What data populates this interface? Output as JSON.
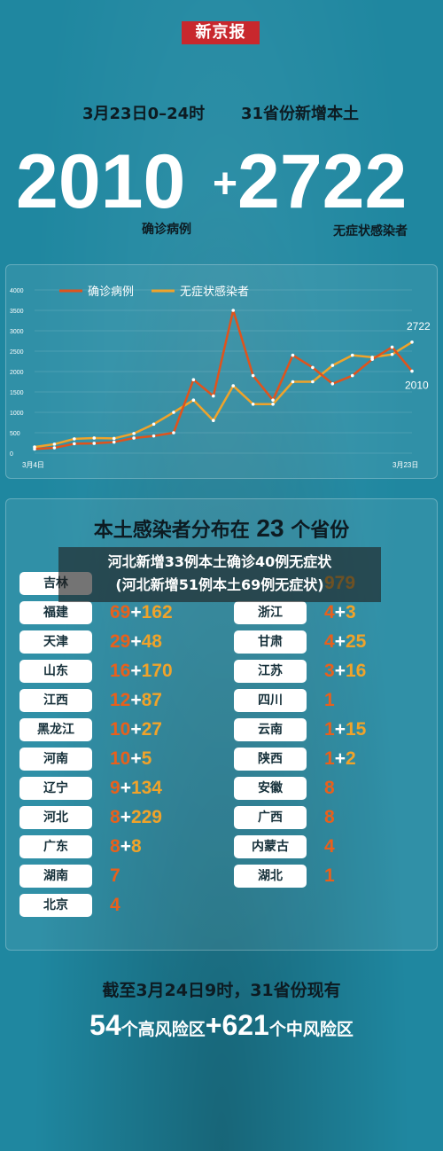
{
  "source_logo": "新京报",
  "headline": {
    "time": "3月23日0–24时",
    "scope": "31省份新增本土"
  },
  "big_numbers": {
    "confirmed": "2010",
    "plus": "+",
    "asymptomatic": "2722",
    "confirmed_label": "确诊病例",
    "asymptomatic_label": "无症状感染者"
  },
  "chart_data": {
    "type": "line",
    "x_start_label": "3月4日",
    "x_end_label": "3月23日",
    "ylim": [
      0,
      4000
    ],
    "yticks": [
      "0",
      "500",
      "1000",
      "1500",
      "2000",
      "2500",
      "3000",
      "3500",
      "4000"
    ],
    "grid": true,
    "legend_position": "top",
    "series": [
      {
        "name": "确诊病例",
        "color": "#e0531c",
        "values": [
          100,
          130,
          230,
          240,
          270,
          370,
          420,
          500,
          1800,
          1400,
          3500,
          1900,
          1300,
          2400,
          2100,
          1700,
          1900,
          2300,
          2600,
          2010
        ]
      },
      {
        "name": "无症状感染者",
        "color": "#f0a32a",
        "values": [
          150,
          220,
          350,
          370,
          360,
          480,
          710,
          1000,
          1300,
          800,
          1650,
          1200,
          1200,
          1750,
          1750,
          2150,
          2400,
          2350,
          2420,
          2722
        ]
      }
    ],
    "end_labels": {
      "asymptomatic": "2722",
      "confirmed": "2010"
    }
  },
  "distribution": {
    "title_pre": "本土感染者分布在",
    "count": "23",
    "title_post": "个省份",
    "left": [
      {
        "prov": "吉林",
        "c": "",
        "p": "",
        "a": ""
      },
      {
        "prov": "福建",
        "c": "69",
        "p": "+",
        "a": "162"
      },
      {
        "prov": "天津",
        "c": "29",
        "p": "+",
        "a": "48"
      },
      {
        "prov": "山东",
        "c": "16",
        "p": "+",
        "a": "170"
      },
      {
        "prov": "江西",
        "c": "12",
        "p": "+",
        "a": "87"
      },
      {
        "prov": "黑龙江",
        "c": "10",
        "p": "+",
        "a": "27"
      },
      {
        "prov": "河南",
        "c": "10",
        "p": "+",
        "a": "5"
      },
      {
        "prov": "辽宁",
        "c": "9",
        "p": "+",
        "a": "134"
      },
      {
        "prov": "河北",
        "c": "8",
        "p": "+",
        "a": "229"
      },
      {
        "prov": "广东",
        "c": "8",
        "p": "+",
        "a": "8"
      },
      {
        "prov": "湖南",
        "c": "7",
        "p": "",
        "a": ""
      },
      {
        "prov": "北京",
        "c": "4",
        "p": "",
        "a": ""
      }
    ],
    "right": [
      {
        "prov": "",
        "c": "",
        "p": "",
        "a": "979"
      },
      {
        "prov": "浙江",
        "c": "4",
        "p": "+",
        "a": "3"
      },
      {
        "prov": "甘肃",
        "c": "4",
        "p": "+",
        "a": "25"
      },
      {
        "prov": "江苏",
        "c": "3",
        "p": "+",
        "a": "16"
      },
      {
        "prov": "四川",
        "c": "1",
        "p": "",
        "a": ""
      },
      {
        "prov": "云南",
        "c": "1",
        "p": "+",
        "a": "15"
      },
      {
        "prov": "陕西",
        "c": "1",
        "p": "+",
        "a": "2"
      },
      {
        "prov": "安徽",
        "c": "8",
        "p": "",
        "a": ""
      },
      {
        "prov": "广西",
        "c": "8",
        "p": "",
        "a": ""
      },
      {
        "prov": "内蒙古",
        "c": "4",
        "p": "",
        "a": ""
      },
      {
        "prov": "湖北",
        "c": "1",
        "p": "",
        "a": ""
      }
    ]
  },
  "overlay": {
    "line1": "河北新增33例本土确诊40例无症状",
    "line2": "(河北新增51例本土69例无症状)"
  },
  "bottom": {
    "line1": "截至3月24日9时，31省份现有",
    "high_count": "54",
    "high_text": "个高风险区",
    "plus": "+",
    "mid_count": "621",
    "mid_text": "个中风险区"
  }
}
